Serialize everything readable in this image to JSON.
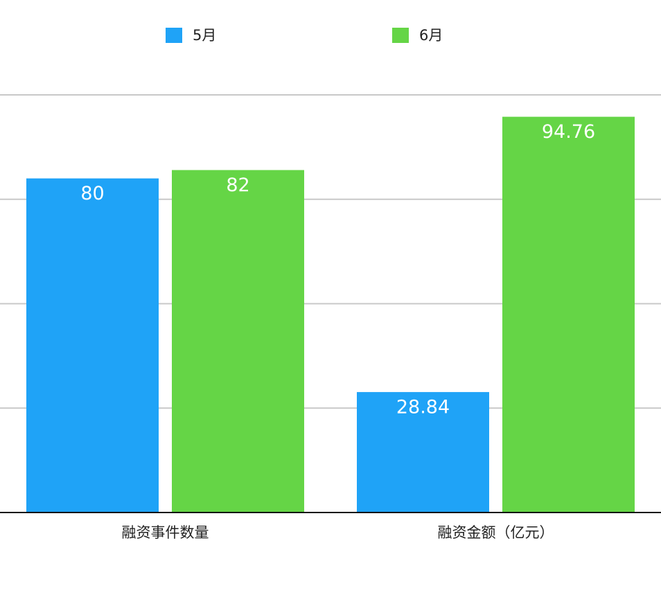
{
  "chart_data": {
    "type": "bar",
    "categories": [
      "融资事件数量",
      "融资金额（亿元）"
    ],
    "series": [
      {
        "name": "5月",
        "color": "#1fa3f7",
        "values": [
          80,
          28.84
        ]
      },
      {
        "name": "6月",
        "color": "#65d546",
        "values": [
          82,
          94.76
        ]
      }
    ],
    "ylim": [
      0,
      100
    ],
    "yticks": [
      25,
      50,
      75,
      100
    ],
    "grid": true
  }
}
